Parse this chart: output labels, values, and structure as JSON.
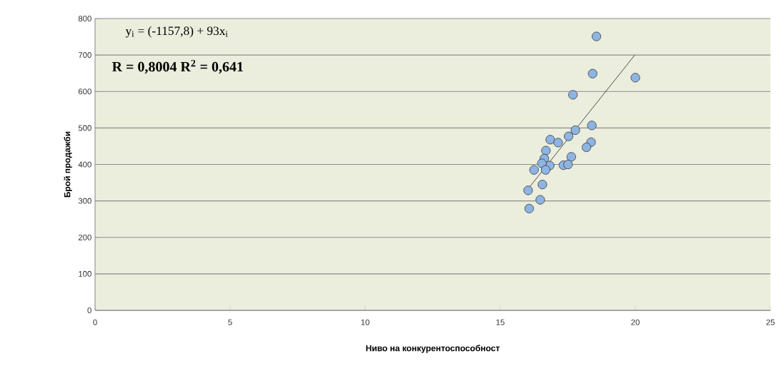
{
  "chart_data": {
    "type": "scatter",
    "xlabel": "Ниво на конкурентоспособност",
    "ylabel": "Брой продажби",
    "xlim": [
      0,
      25
    ],
    "xticks": [
      0,
      5,
      10,
      15,
      20,
      25
    ],
    "ylim": [
      0,
      800
    ],
    "yticks": [
      0,
      100,
      200,
      300,
      400,
      500,
      600,
      700,
      800
    ],
    "grid": "y",
    "annotations": [
      "y$_{i}$ = (-1157,8) + 93x$_{i}$",
      "R = 0,8004   R$^{2}$ = 0,641"
    ],
    "series": [
      {
        "marker": "circle",
        "color": "#8db4e2",
        "x": [
          18.56,
          18.42,
          20.0,
          17.69,
          18.39,
          17.78,
          17.53,
          16.85,
          17.14,
          18.36,
          18.19,
          16.69,
          16.63,
          17.63,
          16.83,
          17.34,
          17.51,
          16.54,
          16.68,
          16.25,
          16.56,
          16.03,
          16.48,
          16.07
        ],
        "values": [
          751,
          649,
          638,
          591,
          507,
          494,
          477,
          468,
          460,
          461,
          447,
          438,
          416,
          421,
          397,
          398,
          400,
          403,
          385,
          385,
          345,
          329,
          303,
          279
        ]
      },
      {
        "type": "line",
        "color": "#404040",
        "x": [
          16.03,
          19.98
        ],
        "values": [
          333,
          700
        ]
      }
    ]
  }
}
